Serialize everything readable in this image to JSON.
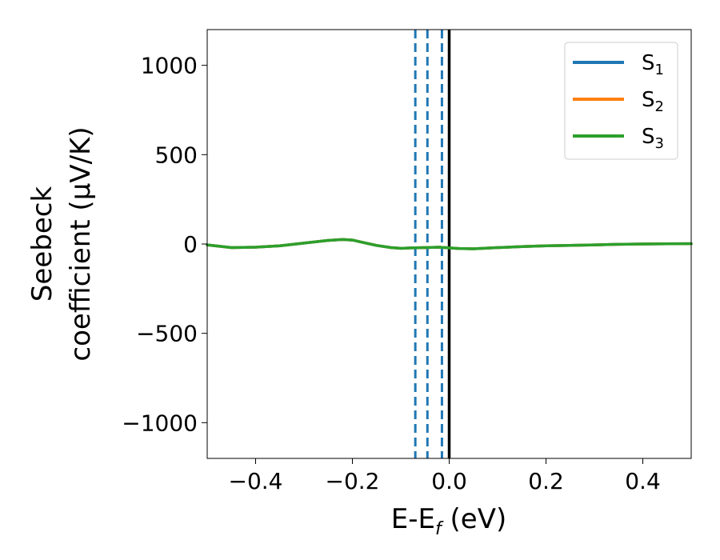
{
  "chart_data": {
    "type": "line",
    "xlabel": "E-E",
    "xlabel_sub": "f",
    "xlabel_unit": " (eV)",
    "ylabel_line1": "Seebeck",
    "ylabel_line2": "coefficient  (μV/K)",
    "xlim": [
      -0.5,
      0.5
    ],
    "ylim": [
      -1200,
      1200
    ],
    "xticks": [
      -0.4,
      -0.2,
      0.0,
      0.2,
      0.4
    ],
    "xtick_labels": [
      "−0.4",
      "−0.2",
      "0.0",
      "0.2",
      "0.4"
    ],
    "yticks": [
      1000,
      500,
      0,
      -500,
      -1000
    ],
    "ytick_labels": [
      "1000",
      "500",
      "0",
      "−500",
      "−1000"
    ],
    "grid": false,
    "legend_position": "top-right",
    "series": [
      {
        "name": "S",
        "sub": "1",
        "color": "#1f77b4",
        "x": [
          -0.5,
          -0.45,
          -0.4,
          -0.35,
          -0.3,
          -0.25,
          -0.22,
          -0.2,
          -0.18,
          -0.15,
          -0.12,
          -0.1,
          -0.08,
          -0.05,
          -0.02,
          0.0,
          0.02,
          0.05,
          0.1,
          0.15,
          0.2,
          0.25,
          0.3,
          0.35,
          0.4,
          0.45,
          0.5
        ],
        "values": [
          -5,
          -20,
          -18,
          -10,
          5,
          20,
          25,
          22,
          10,
          -8,
          -20,
          -24,
          -22,
          -20,
          -18,
          -22,
          -25,
          -27,
          -20,
          -15,
          -10,
          -8,
          -5,
          -2,
          0,
          1,
          2
        ]
      },
      {
        "name": "S",
        "sub": "2",
        "color": "#ff7f0e",
        "x": [
          -0.5,
          -0.45,
          -0.4,
          -0.35,
          -0.3,
          -0.25,
          -0.22,
          -0.2,
          -0.18,
          -0.15,
          -0.12,
          -0.1,
          -0.08,
          -0.05,
          -0.02,
          0.0,
          0.02,
          0.05,
          0.1,
          0.15,
          0.2,
          0.25,
          0.3,
          0.35,
          0.4,
          0.45,
          0.5
        ],
        "values": [
          -5,
          -20,
          -18,
          -10,
          5,
          20,
          25,
          22,
          10,
          -8,
          -20,
          -24,
          -22,
          -20,
          -18,
          -22,
          -25,
          -27,
          -20,
          -15,
          -10,
          -8,
          -5,
          -2,
          0,
          1,
          2
        ]
      },
      {
        "name": "S",
        "sub": "3",
        "color": "#2ca02c",
        "x": [
          -0.5,
          -0.45,
          -0.4,
          -0.35,
          -0.3,
          -0.25,
          -0.22,
          -0.2,
          -0.18,
          -0.15,
          -0.12,
          -0.1,
          -0.08,
          -0.05,
          -0.02,
          0.0,
          0.02,
          0.05,
          0.1,
          0.15,
          0.2,
          0.25,
          0.3,
          0.35,
          0.4,
          0.45,
          0.5
        ],
        "values": [
          -5,
          -20,
          -18,
          -10,
          5,
          20,
          25,
          22,
          10,
          -8,
          -20,
          -24,
          -22,
          -20,
          -18,
          -22,
          -25,
          -27,
          -20,
          -15,
          -10,
          -8,
          -5,
          -2,
          0,
          1,
          2
        ]
      }
    ],
    "vlines_dashed": {
      "color": "#1f77b4",
      "x": [
        -0.07,
        -0.045,
        -0.015
      ]
    },
    "vline_solid": {
      "color": "#000000",
      "x": 0.0
    }
  }
}
